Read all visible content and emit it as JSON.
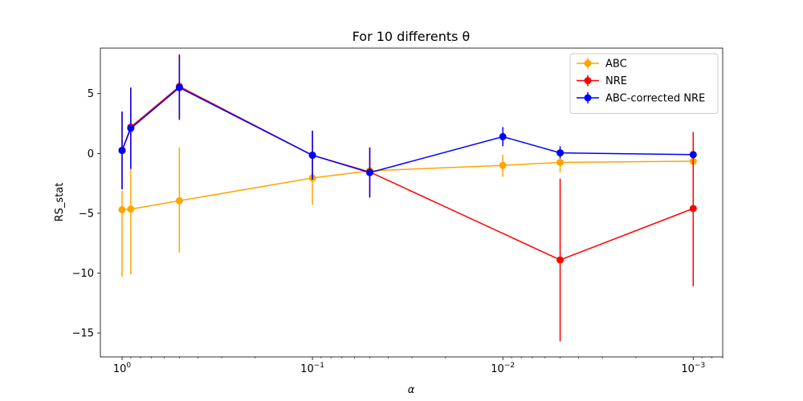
{
  "chart_data": {
    "type": "line",
    "title": "For 10 differents θ",
    "xlabel": "α",
    "ylabel": "RS_stat",
    "x_scale": "log",
    "x_inverted": true,
    "x_range": [
      1.3,
      0.0007
    ],
    "y_range": [
      -17.0,
      8.8
    ],
    "x_ticks": [
      1,
      0.1,
      0.01,
      0.001
    ],
    "x_tick_labels": [
      "10",
      "10",
      "10",
      "10"
    ],
    "x_tick_exponents": [
      "0",
      "−1",
      "−2",
      "−3"
    ],
    "y_ticks": [
      -15,
      -10,
      -5,
      0,
      5
    ],
    "y_tick_labels": [
      "−15",
      "−10",
      "−5",
      "0",
      "5"
    ],
    "legend_position": "top-right",
    "grid": false,
    "series": [
      {
        "name": "ABC",
        "color": "#ffa500",
        "x": [
          1,
          0.9,
          0.5,
          0.1,
          0.05,
          0.01,
          0.005,
          0.001
        ],
        "y": [
          -4.7,
          -4.65,
          -3.95,
          -2.05,
          -1.45,
          -1.0,
          -0.75,
          -0.65
        ],
        "err_low": [
          -10.3,
          -10.1,
          -8.3,
          -4.3,
          -1.6,
          -1.95,
          -1.6,
          -0.9
        ],
        "err_high": [
          -3.1,
          -1.3,
          0.5,
          -0.2,
          -1.3,
          -0.1,
          -0.2,
          -0.4
        ]
      },
      {
        "name": "NRE",
        "color": "#ff0000",
        "x": [
          1,
          0.9,
          0.5,
          0.1,
          0.05,
          0.005,
          0.001
        ],
        "y": [
          0.25,
          2.2,
          5.6,
          -0.15,
          -1.55,
          -8.9,
          -4.6
        ],
        "err_low": [
          -3.0,
          -1.2,
          2.9,
          -2.1,
          -3.6,
          -15.7,
          -11.1
        ],
        "err_high": [
          3.5,
          5.5,
          8.3,
          1.9,
          0.5,
          -2.1,
          1.8
        ]
      },
      {
        "name": "ABC-corrected NRE",
        "color": "#0000ff",
        "x": [
          1,
          0.9,
          0.5,
          0.1,
          0.05,
          0.01,
          0.005,
          0.001
        ],
        "y": [
          0.25,
          2.1,
          5.5,
          -0.15,
          -1.6,
          1.4,
          0.05,
          -0.1
        ],
        "err_low": [
          -3.0,
          -1.3,
          2.8,
          -2.2,
          -3.7,
          0.6,
          -0.4,
          -0.3
        ],
        "err_high": [
          3.5,
          5.5,
          8.2,
          1.9,
          0.5,
          2.2,
          0.6,
          0.1
        ]
      }
    ]
  }
}
